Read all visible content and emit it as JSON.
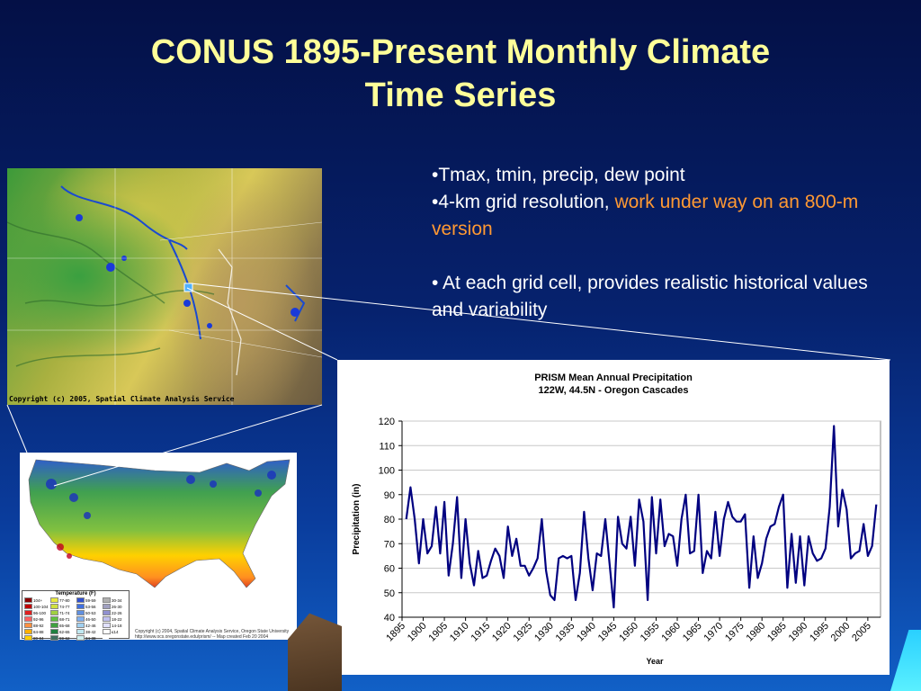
{
  "slide": {
    "title_line1": "CONUS 1895-Present Monthly Climate",
    "title_line2": "Time Series",
    "bullet1": "•Tmax, tmin, precip, dew point",
    "bullet2_prefix": "•4-km grid resolution, ",
    "bullet2_orange": "work under way on an 800-m version",
    "bullet3": "• At each grid cell, provides realistic historical values and variability",
    "colors": {
      "title": "#ffff99",
      "orange": "#ff9933",
      "bullet": "#ffffff"
    }
  },
  "terrain_map": {
    "copyright": "Copyright (c) 2005, Spatial Climate Analysis Service"
  },
  "us_map": {
    "legend_title": "Temperature (F)",
    "legend_items": [
      {
        "label": "104+",
        "color": "#8b0000"
      },
      {
        "label": "77-80",
        "color": "#e8e840"
      },
      {
        "label": "59-59",
        "color": "#3050d0"
      },
      {
        "label": "30-34",
        "color": "#b0b0b0"
      },
      {
        "label": "100-104",
        "color": "#c00000"
      },
      {
        "label": "74-77",
        "color": "#d0e040"
      },
      {
        "label": "53-56",
        "color": "#4070e0"
      },
      {
        "label": "26-30",
        "color": "#a0a0c0"
      },
      {
        "label": "96-100",
        "color": "#e02020"
      },
      {
        "label": "71-74",
        "color": "#a0d040"
      },
      {
        "label": "50-53",
        "color": "#6090e0"
      },
      {
        "label": "22-26",
        "color": "#9090d0"
      },
      {
        "label": "92-96",
        "color": "#ff6060"
      },
      {
        "label": "68-71",
        "color": "#60c040"
      },
      {
        "label": "46-50",
        "color": "#80b0f0"
      },
      {
        "label": "18-22",
        "color": "#c0c0f0"
      },
      {
        "label": "88-92",
        "color": "#ff9040"
      },
      {
        "label": "65-68",
        "color": "#40a040"
      },
      {
        "label": "42-46",
        "color": "#a0d0f0"
      },
      {
        "label": "14-18",
        "color": "#e0e0ff"
      },
      {
        "label": "84-88",
        "color": "#ffb000"
      },
      {
        "label": "62-65",
        "color": "#208040"
      },
      {
        "label": "38-42",
        "color": "#c0e8f0"
      },
      {
        "label": "≤14",
        "color": "#ffffff"
      },
      {
        "label": "80-84",
        "color": "#ffd000"
      },
      {
        "label": "59-62",
        "color": "#407060"
      },
      {
        "label": "34-38",
        "color": "#d0f0f0"
      },
      {
        "label": "",
        "color": "#ffffff"
      }
    ],
    "copyright": "Copyright (c) 2004, Spatial Climate Analysis Service, Oregon State University http://www.ocs.oregonstate.edu/prism/ -- Map created Feb 20 2004"
  },
  "chart_data": {
    "type": "line",
    "title": "PRISM Mean Annual Precipitation",
    "subtitle": "122W, 44.5N - Oregon Cascades",
    "xlabel": "Year",
    "ylabel": "Precipitation (in)",
    "ylim": [
      40,
      120
    ],
    "yticks": [
      40,
      50,
      60,
      70,
      80,
      90,
      100,
      110,
      120
    ],
    "xlim": [
      1895,
      2008
    ],
    "xticks": [
      1895,
      1900,
      1905,
      1910,
      1915,
      1920,
      1925,
      1930,
      1935,
      1940,
      1945,
      1950,
      1955,
      1960,
      1965,
      1970,
      1975,
      1980,
      1985,
      1990,
      1995,
      2000,
      2005
    ],
    "grid": true,
    "line_color": "#000080",
    "series": [
      {
        "x": [
          1896,
          1897,
          1898,
          1899,
          1900,
          1901,
          1902,
          1903,
          1904,
          1905,
          1906,
          1907,
          1908,
          1909,
          1910,
          1911,
          1912,
          1913,
          1914,
          1915,
          1916,
          1917,
          1918,
          1919,
          1920,
          1921,
          1922,
          1923,
          1924,
          1925,
          1926,
          1927,
          1928,
          1929,
          1930,
          1931,
          1932,
          1933,
          1934,
          1935,
          1936,
          1937,
          1938,
          1939,
          1940,
          1941,
          1942,
          1943,
          1944,
          1945,
          1946,
          1947,
          1948,
          1949,
          1950,
          1951,
          1952,
          1953,
          1954,
          1955,
          1956,
          1957,
          1958,
          1959,
          1960,
          1961,
          1962,
          1963,
          1964,
          1965,
          1966,
          1967,
          1968,
          1969,
          1970,
          1971,
          1972,
          1973,
          1974,
          1975,
          1976,
          1977,
          1978,
          1979,
          1980,
          1981,
          1982,
          1983,
          1984,
          1985,
          1986,
          1987,
          1988,
          1989,
          1990,
          1991,
          1992,
          1993,
          1994,
          1995,
          1996,
          1997,
          1998,
          1999,
          2000,
          2001,
          2002,
          2003,
          2004,
          2005,
          2006,
          2007
        ],
        "values": [
          80,
          93,
          80,
          62,
          80,
          66,
          69,
          85,
          66,
          87,
          57,
          70,
          89,
          56,
          80,
          62,
          53,
          67,
          56,
          57,
          63,
          68,
          65,
          56,
          77,
          65,
          72,
          61,
          61,
          57,
          60,
          64,
          80,
          59,
          49,
          47,
          64,
          65,
          64,
          65,
          47,
          58,
          83,
          64,
          51,
          66,
          65,
          80,
          62,
          44,
          81,
          70,
          68,
          81,
          61,
          88,
          79,
          47,
          89,
          66,
          88,
          69,
          74,
          73,
          61,
          80,
          90,
          66,
          67,
          90,
          58,
          67,
          64,
          83,
          65,
          80,
          87,
          81,
          79,
          79,
          82,
          52,
          73,
          56,
          62,
          72,
          77,
          78,
          85,
          90,
          52,
          74,
          54,
          73,
          53,
          73,
          66,
          63,
          64,
          68,
          85,
          118,
          77,
          92,
          84,
          64,
          66,
          67,
          78,
          65,
          69,
          86
        ]
      }
    ]
  }
}
